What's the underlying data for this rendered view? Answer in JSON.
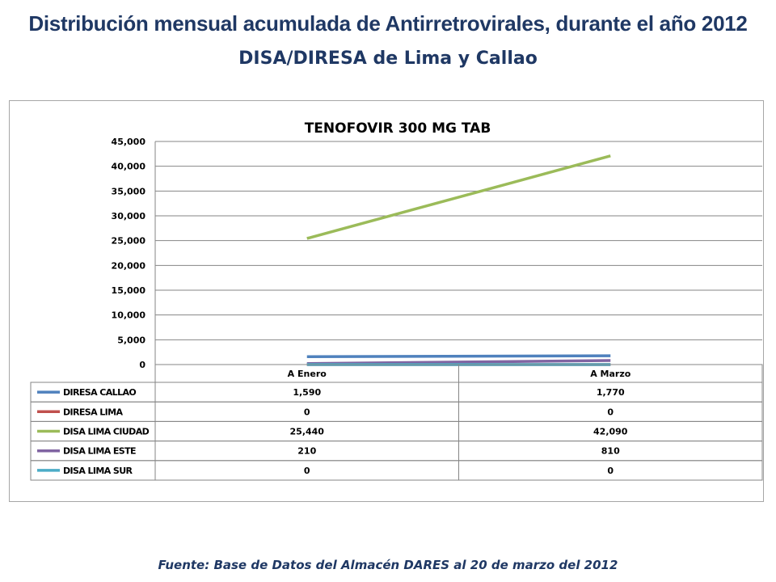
{
  "page": {
    "title_line1": "Distribución mensual acumulada de Antirretrovirales, durante el año 2012",
    "title_line2": "DISA/DIRESA de Lima y Callao",
    "source": "Fuente: Base de Datos del Almacén DARES al 20 de marzo del 2012"
  },
  "chart_data": {
    "type": "line",
    "title": "TENOFOVIR 300 MG TAB",
    "categories": [
      "A Enero",
      "A Marzo"
    ],
    "ylim": [
      0,
      45000
    ],
    "yticks": [
      0,
      5000,
      10000,
      15000,
      20000,
      25000,
      30000,
      35000,
      40000,
      45000
    ],
    "ytick_labels": [
      "0",
      "5,000",
      "10,000",
      "15,000",
      "20,000",
      "25,000",
      "30,000",
      "35,000",
      "40,000",
      "45,000"
    ],
    "grid": true,
    "legend_placement": "data-table",
    "series": [
      {
        "name": "DIRESA CALLAO",
        "values": [
          1590,
          1770
        ],
        "labels": [
          "1,590",
          "1,770"
        ],
        "color": "#4f81bd"
      },
      {
        "name": "DIRESA LIMA",
        "values": [
          0,
          0
        ],
        "labels": [
          "0",
          "0"
        ],
        "color": "#c0504d"
      },
      {
        "name": "DISA LIMA CIUDAD",
        "values": [
          25440,
          42090
        ],
        "labels": [
          "25,440",
          "42,090"
        ],
        "color": "#9bbb59"
      },
      {
        "name": "DISA LIMA ESTE",
        "values": [
          210,
          810
        ],
        "labels": [
          "210",
          "810"
        ],
        "color": "#8064a2"
      },
      {
        "name": "DISA LIMA SUR",
        "values": [
          0,
          0
        ],
        "labels": [
          "0",
          "0"
        ],
        "color": "#4bacc6"
      }
    ]
  }
}
